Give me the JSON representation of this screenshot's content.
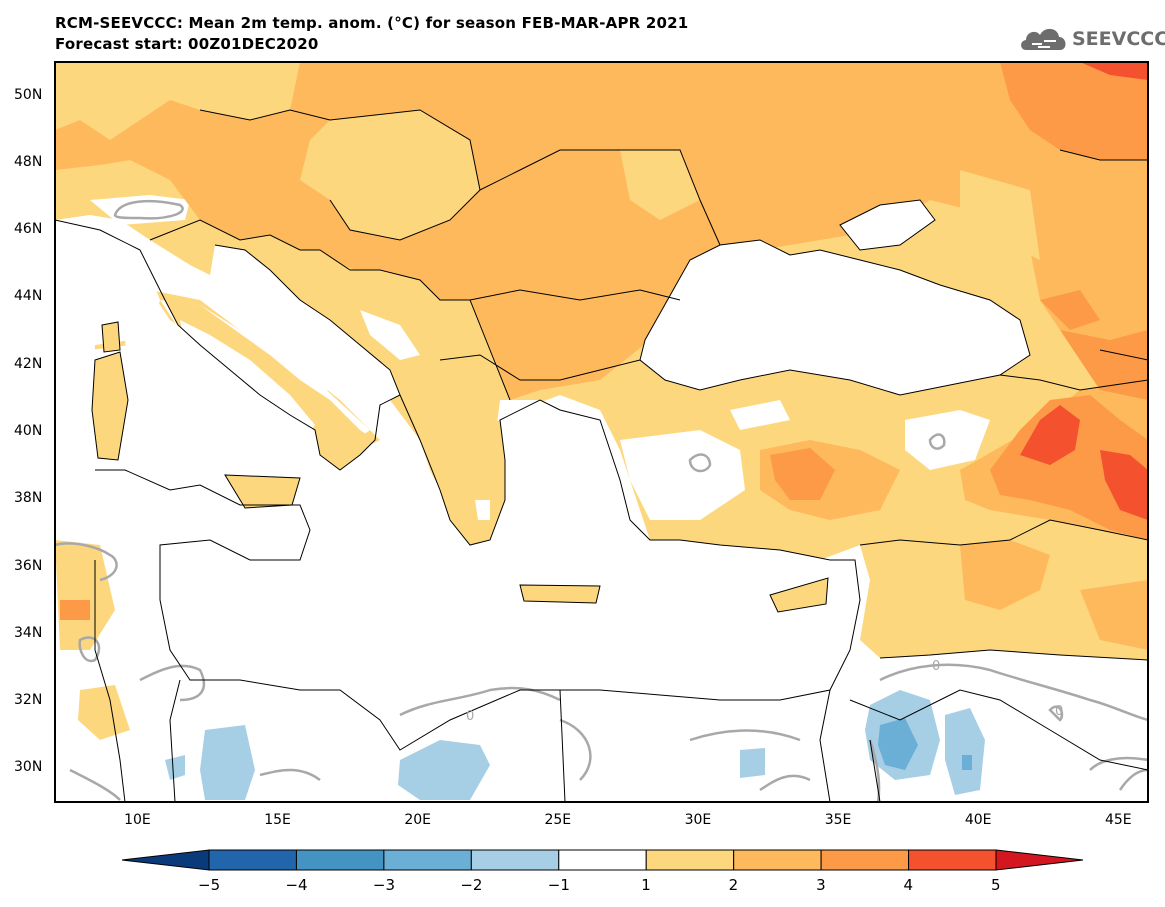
{
  "header": {
    "title_line1": "RCM-SEEVCCC: Mean 2m temp. anom. (°C) for season FEB-MAR-APR 2021",
    "title_line2": "Forecast start: 00Z01DEC2020"
  },
  "logo": {
    "text": "SEEVCCC",
    "icon": "cloud-icon"
  },
  "map": {
    "variable": "Mean 2m temperature anomaly",
    "unit": "°C",
    "season": "FEB-MAR-APR 2021",
    "lon_range": [
      7,
      46
    ],
    "lat_range": [
      29,
      51
    ],
    "lat_labels": [
      {
        "lat": 50,
        "text": "50N"
      },
      {
        "lat": 48,
        "text": "48N"
      },
      {
        "lat": 46,
        "text": "46N"
      },
      {
        "lat": 44,
        "text": "44N"
      },
      {
        "lat": 42,
        "text": "42N"
      },
      {
        "lat": 40,
        "text": "40N"
      },
      {
        "lat": 38,
        "text": "38N"
      },
      {
        "lat": 36,
        "text": "36N"
      },
      {
        "lat": 34,
        "text": "34N"
      },
      {
        "lat": 32,
        "text": "32N"
      },
      {
        "lat": 30,
        "text": "30N"
      }
    ],
    "lon_labels": [
      {
        "lon": 10,
        "text": "10E"
      },
      {
        "lon": 15,
        "text": "15E"
      },
      {
        "lon": 20,
        "text": "20E"
      },
      {
        "lon": 25,
        "text": "25E"
      },
      {
        "lon": 30,
        "text": "30E"
      },
      {
        "lon": 35,
        "text": "35E"
      },
      {
        "lon": 40,
        "text": "40E"
      },
      {
        "lon": 45,
        "text": "45E"
      }
    ],
    "contour_label": "0"
  },
  "colorbar": {
    "bins": [
      {
        "range": "< -5",
        "color": "#0a3a7a"
      },
      {
        "range": "-5 to -4",
        "color": "#2166ac"
      },
      {
        "range": "-4 to -3",
        "color": "#4393c3"
      },
      {
        "range": "-3 to -2",
        "color": "#6baed6"
      },
      {
        "range": "-2 to -1",
        "color": "#a6cfe6"
      },
      {
        "range": "-1 to 1",
        "color": "#ffffff"
      },
      {
        "range": "1 to 2",
        "color": "#fdd77e"
      },
      {
        "range": "2 to 3",
        "color": "#fdb95c"
      },
      {
        "range": "3 to 4",
        "color": "#fc9a48"
      },
      {
        "range": "4 to 5",
        "color": "#f4512e"
      },
      {
        "range": "> 5",
        "color": "#d3161f"
      }
    ],
    "labels": [
      {
        "text": "−5"
      },
      {
        "text": "−4"
      },
      {
        "text": "−3"
      },
      {
        "text": "−2"
      },
      {
        "text": "−1"
      },
      {
        "text": "1"
      },
      {
        "text": "2"
      },
      {
        "text": "3"
      },
      {
        "text": "4"
      },
      {
        "text": "5"
      }
    ]
  }
}
